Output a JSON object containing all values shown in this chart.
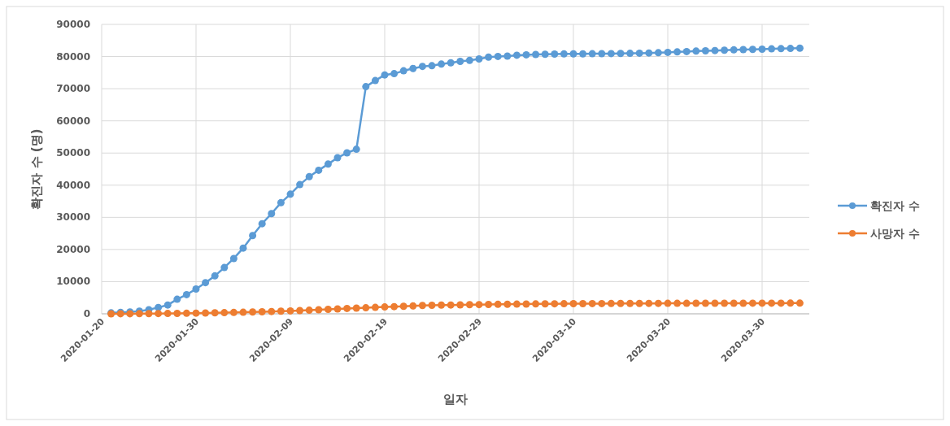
{
  "chart_data": {
    "type": "line",
    "xlabel": "일자",
    "ylabel": "확진자 수 (명)",
    "x": [
      "2020-01-21",
      "2020-01-22",
      "2020-01-23",
      "2020-01-24",
      "2020-01-25",
      "2020-01-26",
      "2020-01-27",
      "2020-01-28",
      "2020-01-29",
      "2020-01-30",
      "2020-01-31",
      "2020-02-01",
      "2020-02-02",
      "2020-02-03",
      "2020-02-04",
      "2020-02-05",
      "2020-02-06",
      "2020-02-07",
      "2020-02-08",
      "2020-02-09",
      "2020-02-10",
      "2020-02-11",
      "2020-02-12",
      "2020-02-13",
      "2020-02-14",
      "2020-02-15",
      "2020-02-16",
      "2020-02-17",
      "2020-02-18",
      "2020-02-19",
      "2020-02-20",
      "2020-02-21",
      "2020-02-22",
      "2020-02-23",
      "2020-02-24",
      "2020-02-25",
      "2020-02-26",
      "2020-02-27",
      "2020-02-28",
      "2020-02-29",
      "2020-03-01",
      "2020-03-02",
      "2020-03-03",
      "2020-03-04",
      "2020-03-05",
      "2020-03-06",
      "2020-03-07",
      "2020-03-08",
      "2020-03-09",
      "2020-03-10",
      "2020-03-11",
      "2020-03-12",
      "2020-03-13",
      "2020-03-14",
      "2020-03-15",
      "2020-03-16",
      "2020-03-17",
      "2020-03-18",
      "2020-03-19",
      "2020-03-20",
      "2020-03-21",
      "2020-03-22",
      "2020-03-23",
      "2020-03-24",
      "2020-03-25",
      "2020-03-26",
      "2020-03-27",
      "2020-03-28",
      "2020-03-29",
      "2020-03-30",
      "2020-03-31",
      "2020-04-01",
      "2020-04-02",
      "2020-04-03"
    ],
    "series": [
      {
        "name": "확진자 수",
        "color": "#5b9bd5",
        "values": [
          300,
          440,
          570,
          830,
          1290,
          1980,
          2740,
          4520,
          5970,
          7710,
          9690,
          11790,
          14380,
          17200,
          20440,
          24320,
          28020,
          31160,
          34550,
          37200,
          40170,
          42640,
          44650,
          46550,
          48550,
          50050,
          51170,
          70640,
          72530,
          74280,
          74680,
          75570,
          76290,
          76940,
          77150,
          77660,
          78060,
          78500,
          78820,
          79250,
          79820,
          80030,
          80150,
          80410,
          80550,
          80650,
          80700,
          80760,
          80810,
          80840,
          80850,
          80880,
          80890,
          80920,
          80960,
          81000,
          81050,
          81110,
          81200,
          81300,
          81440,
          81550,
          81690,
          81790,
          81870,
          81960,
          82080,
          82160,
          82240,
          82300,
          82400,
          82450,
          82520,
          82600
        ]
      },
      {
        "name": "사망자 수",
        "color": "#ed7d31",
        "values": [
          9,
          17,
          25,
          41,
          56,
          80,
          106,
          132,
          170,
          213,
          259,
          304,
          361,
          425,
          490,
          563,
          636,
          722,
          811,
          908,
          1016,
          1113,
          1259,
          1380,
          1523,
          1665,
          1770,
          1868,
          2004,
          2118,
          2236,
          2345,
          2442,
          2592,
          2663,
          2715,
          2744,
          2788,
          2835,
          2870,
          2912,
          2943,
          2981,
          3012,
          3042,
          3070,
          3097,
          3119,
          3136,
          3158,
          3169,
          3176,
          3189,
          3199,
          3213,
          3226,
          3237,
          3245,
          3248,
          3255,
          3261,
          3270,
          3277,
          3281,
          3287,
          3292,
          3295,
          3300,
          3304,
          3305,
          3309,
          3316,
          3322,
          3326
        ]
      }
    ],
    "xlim": [
      "2020-01-20",
      "2020-04-04"
    ],
    "xticks": [
      "2020-01-20",
      "2020-01-30",
      "2020-02-09",
      "2020-02-19",
      "2020-02-29",
      "2020-03-10",
      "2020-03-20",
      "2020-03-30"
    ],
    "ylim": [
      0,
      90000
    ],
    "yticks": [
      0,
      10000,
      20000,
      30000,
      40000,
      50000,
      60000,
      70000,
      80000,
      90000
    ],
    "grid": true,
    "legend": "right",
    "marker": "circle",
    "line_style": "solid"
  }
}
